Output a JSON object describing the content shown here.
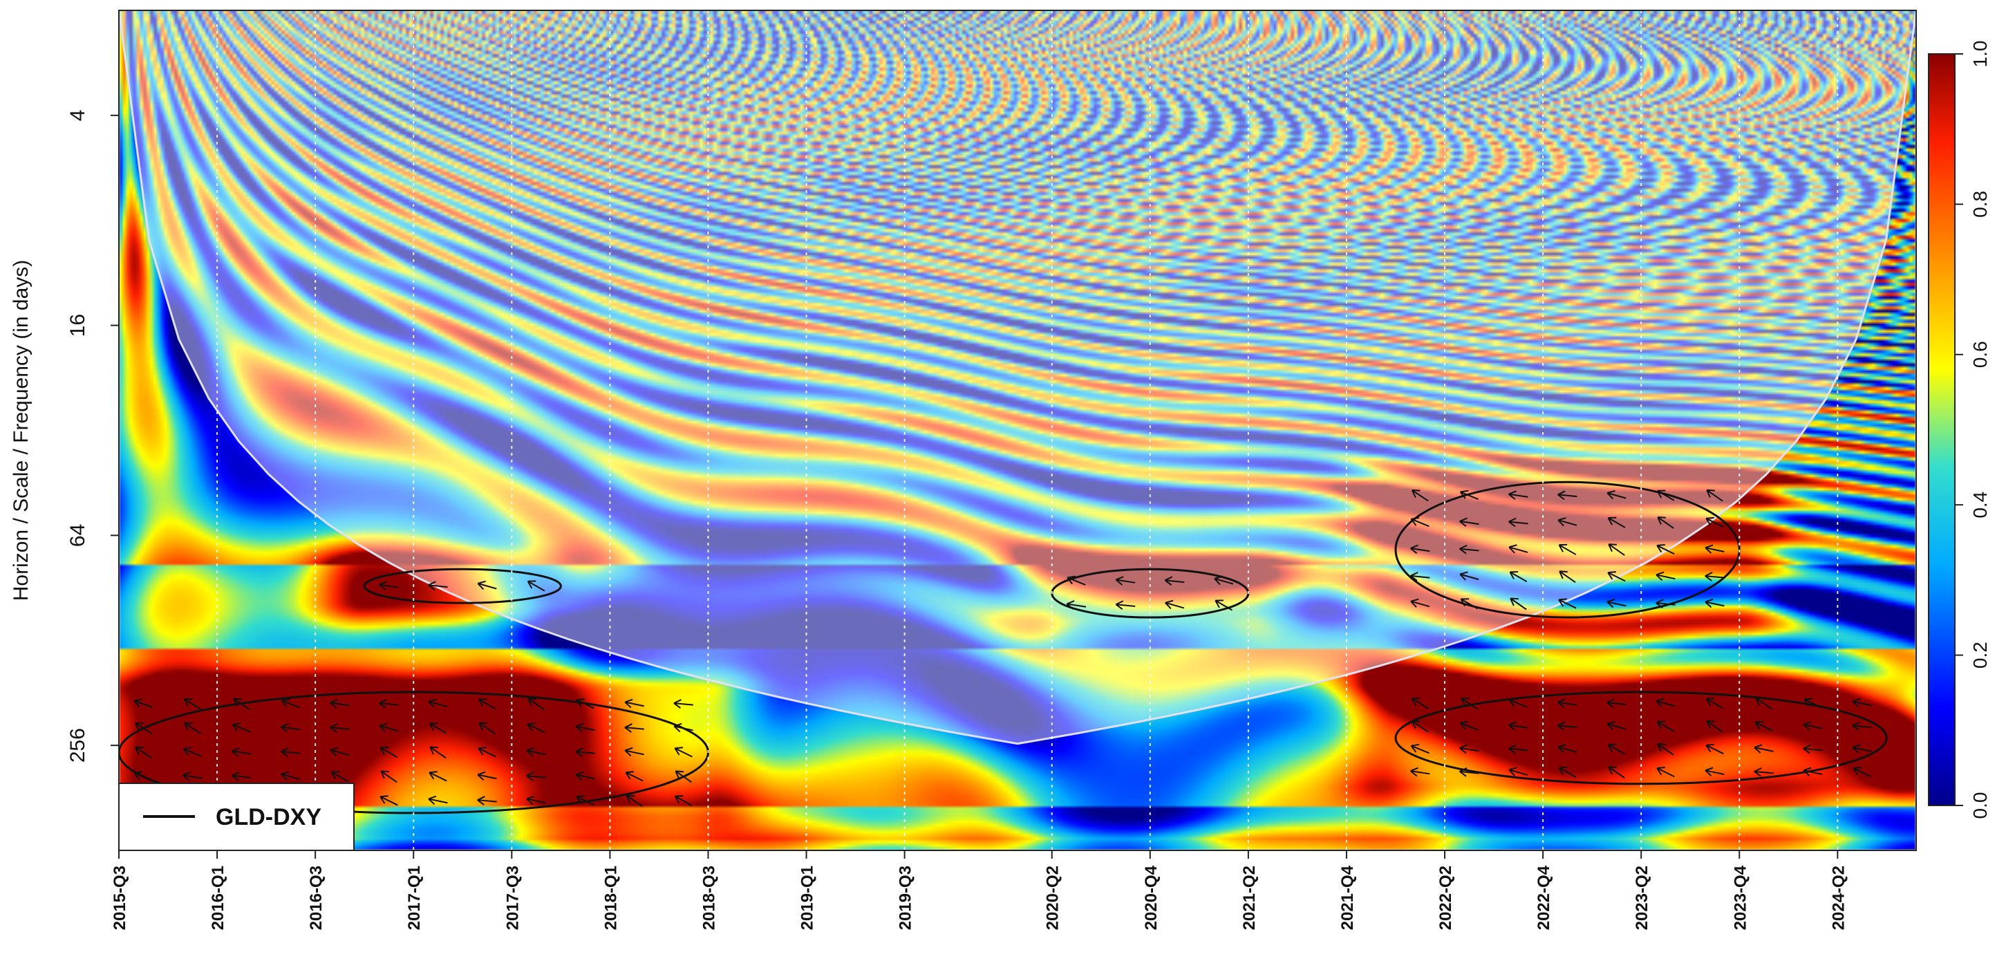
{
  "chart_data": {
    "type": "heatmap",
    "title": "",
    "ylabel": "Horizon / Scale / Frequency (in days)",
    "xlabel": "",
    "x_ticks": [
      "2015-Q3",
      "2016-Q1",
      "2016-Q3",
      "2017-Q1",
      "2017-Q3",
      "2018-Q1",
      "2018-Q3",
      "2019-Q1",
      "2019-Q3",
      "2020-Q2",
      "2020-Q4",
      "2021-Q2",
      "2021-Q4",
      "2022-Q2",
      "2022-Q4",
      "2023-Q2",
      "2023-Q4",
      "2024-Q2"
    ],
    "y_ticks": [
      4,
      16,
      64,
      256
    ],
    "y_scale": "log2",
    "y_range": [
      2,
      512
    ],
    "colorbar": {
      "min": 0.0,
      "max": 1.0,
      "ticks": [
        "0.0",
        "0.2",
        "0.4",
        "0.6",
        "0.8",
        "1.0"
      ]
    },
    "legend": {
      "label": "GLD-DXY",
      "placement": "bottom-left"
    },
    "colors": {
      "low": "#00008b",
      "mid": "#ffff00",
      "high": "#8b0000"
    },
    "significant_regions": [
      {
        "period_range": [
          180,
          400
        ],
        "time_range": [
          "2015-Q3",
          "2018-Q3"
        ]
      },
      {
        "period_range": [
          180,
          330
        ],
        "time_range": [
          "2022-Q1",
          "2024-Q3"
        ]
      },
      {
        "period_range": [
          45,
          110
        ],
        "time_range": [
          "2022-Q1",
          "2023-Q4"
        ]
      },
      {
        "period_range": [
          80,
          110
        ],
        "time_range": [
          "2020-Q2",
          "2021-Q2"
        ]
      },
      {
        "period_range": [
          80,
          100
        ],
        "time_range": [
          "2016-Q4",
          "2017-Q4"
        ]
      }
    ]
  }
}
